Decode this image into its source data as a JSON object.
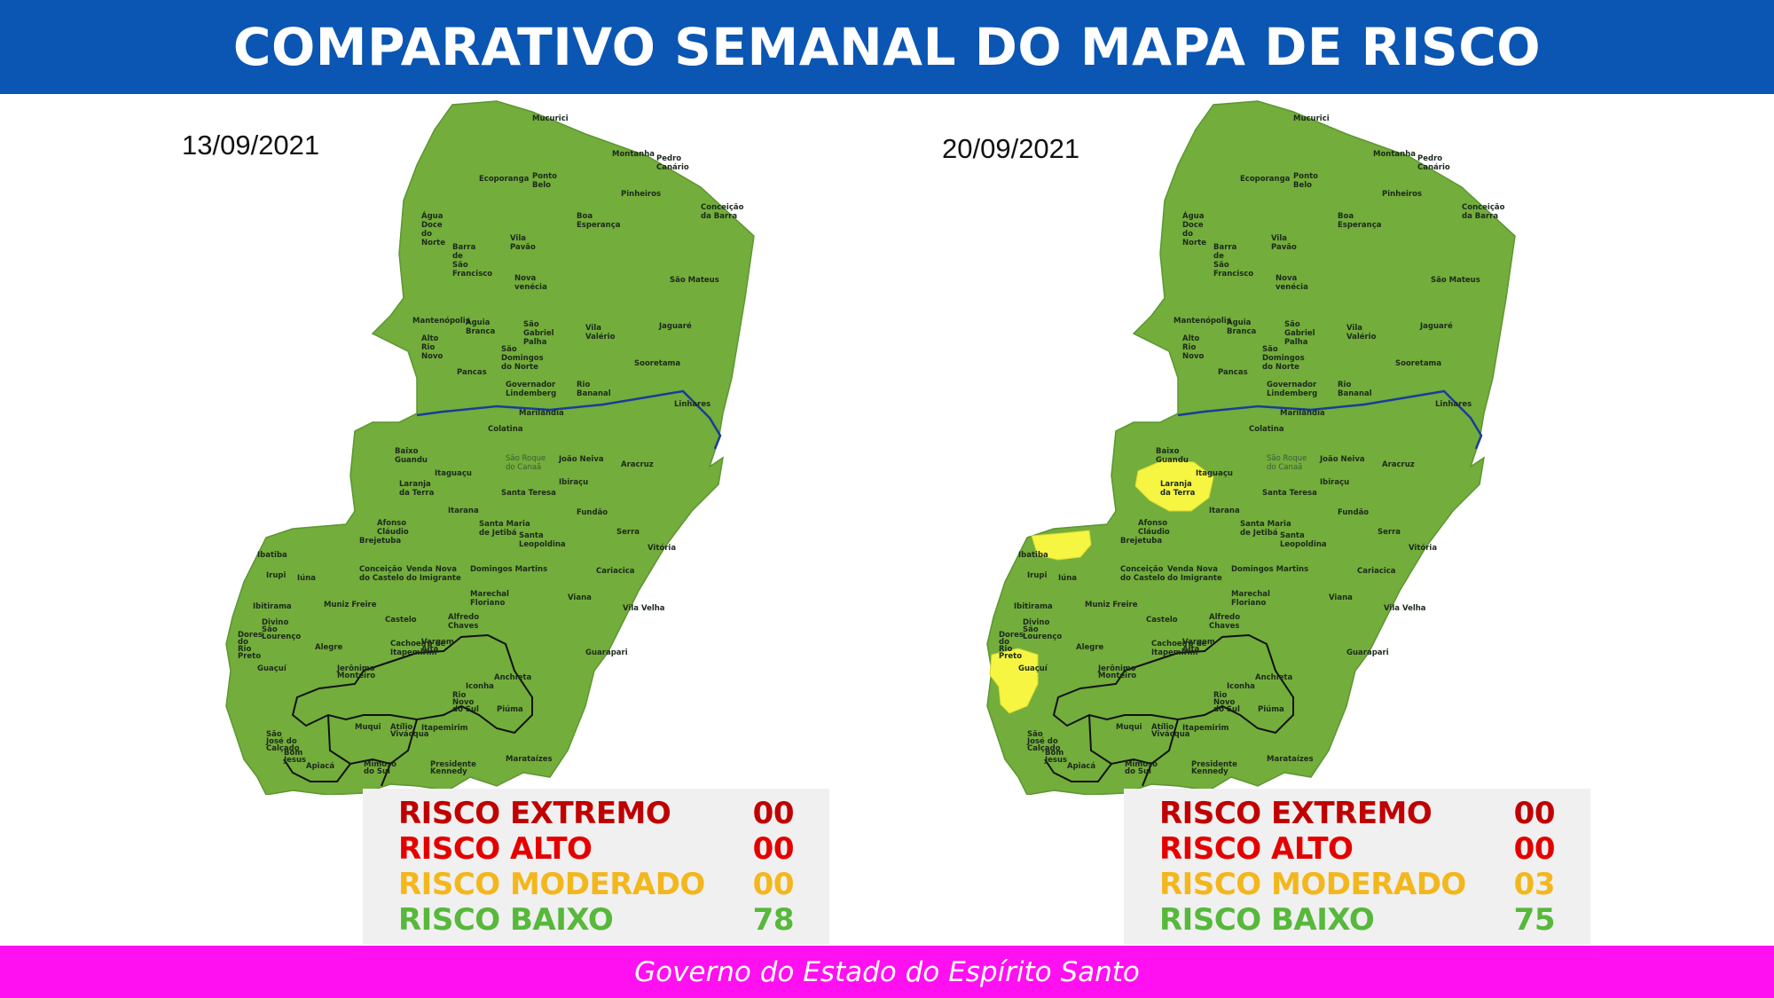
{
  "header": {
    "title": "COMPARATIVO SEMANAL DO MAPA DE RISCO"
  },
  "footer": {
    "text": "Governo do Estado do Espírito Santo"
  },
  "colors": {
    "header_bg": "#0b56b3",
    "footer_bg": "#ff10f0",
    "map_green": "#73ad3b",
    "moderate_yellow": "#f5f542"
  },
  "panels": [
    {
      "date": "13/09/2021",
      "legend": [
        {
          "label": "RISCO EXTREMO",
          "value": "00"
        },
        {
          "label": "RISCO ALTO",
          "value": "00"
        },
        {
          "label": "RISCO MODERADO",
          "value": "00"
        },
        {
          "label": "RISCO BAIXO",
          "value": "78"
        }
      ],
      "moderate_regions": []
    },
    {
      "date": "20/09/2021",
      "legend": [
        {
          "label": "RISCO EXTREMO",
          "value": "00"
        },
        {
          "label": "RISCO ALTO",
          "value": "00"
        },
        {
          "label": "RISCO MODERADO",
          "value": "03"
        },
        {
          "label": "RISCO BAIXO",
          "value": "75"
        }
      ],
      "moderate_regions": [
        "Laranja da Terra",
        "Ibatiba",
        "Guaçuí"
      ]
    }
  ],
  "towns": [
    {
      "name": "Mucurici"
    },
    {
      "name": "Montanha"
    },
    {
      "name": "Pedro"
    },
    {
      "name": "Canário"
    },
    {
      "name": "Ecoporanga"
    },
    {
      "name": "Ponto"
    },
    {
      "name": "Belo"
    },
    {
      "name": "Pinheiros"
    },
    {
      "name": "Conceição"
    },
    {
      "name": "da Barra"
    },
    {
      "name": "Água"
    },
    {
      "name": "Doce"
    },
    {
      "name": "do"
    },
    {
      "name": "Norte"
    },
    {
      "name": "Boa"
    },
    {
      "name": "Esperança"
    },
    {
      "name": "Vila"
    },
    {
      "name": "Pavão"
    },
    {
      "name": "Barra"
    },
    {
      "name": "de"
    },
    {
      "name": "São"
    },
    {
      "name": "Francisco"
    },
    {
      "name": "São Mateus"
    },
    {
      "name": "Nova"
    },
    {
      "name": "venécia"
    },
    {
      "name": "Mantenópolis"
    },
    {
      "name": "Águia"
    },
    {
      "name": "Branca"
    },
    {
      "name": "São"
    },
    {
      "name": "Gabriel"
    },
    {
      "name": "Palha"
    },
    {
      "name": "Vila"
    },
    {
      "name": "Valério"
    },
    {
      "name": "Jaguaré"
    },
    {
      "name": "Alto"
    },
    {
      "name": "Rio"
    },
    {
      "name": "Novo"
    },
    {
      "name": "São"
    },
    {
      "name": "Domingos"
    },
    {
      "name": "do Norte"
    },
    {
      "name": "Sooretama"
    },
    {
      "name": "Pancas"
    },
    {
      "name": "Governador"
    },
    {
      "name": "Lindemberg"
    },
    {
      "name": "Rio"
    },
    {
      "name": "Bananal"
    },
    {
      "name": "Linhares"
    },
    {
      "name": "Marilândia"
    },
    {
      "name": "Colatina"
    },
    {
      "name": "Baixo"
    },
    {
      "name": "Guandu"
    },
    {
      "name": "São Roque"
    },
    {
      "name": "do Canaã"
    },
    {
      "name": "João Neiva"
    },
    {
      "name": "Aracruz"
    },
    {
      "name": "Itaguaçu"
    },
    {
      "name": "Ibiraçu"
    },
    {
      "name": "Laranja"
    },
    {
      "name": "da Terra"
    },
    {
      "name": "Santa Teresa"
    },
    {
      "name": "Itarana"
    },
    {
      "name": "Fundão"
    },
    {
      "name": "Afonso"
    },
    {
      "name": "Cláudio"
    },
    {
      "name": "Santa Maria"
    },
    {
      "name": "de Jetibá"
    },
    {
      "name": "Serra"
    },
    {
      "name": "Brejetuba"
    },
    {
      "name": "Santa"
    },
    {
      "name": "Leopoldina"
    },
    {
      "name": "Ibatiba"
    },
    {
      "name": "Vitória"
    },
    {
      "name": "Iúna"
    },
    {
      "name": "Irupi"
    },
    {
      "name": "Conceição"
    },
    {
      "name": "do Castelo"
    },
    {
      "name": "Venda Nova"
    },
    {
      "name": "do Imigrante"
    },
    {
      "name": "Domingos Martins"
    },
    {
      "name": "Cariacica"
    },
    {
      "name": "Ibitirama"
    },
    {
      "name": "Muniz Freire"
    },
    {
      "name": "Marechal"
    },
    {
      "name": "Floriano"
    },
    {
      "name": "Viana"
    },
    {
      "name": "Vila Velha"
    },
    {
      "name": "Divino"
    },
    {
      "name": "São"
    },
    {
      "name": "Lourenço"
    },
    {
      "name": "Castelo"
    },
    {
      "name": "Alfredo"
    },
    {
      "name": "Chaves"
    },
    {
      "name": "Dores"
    },
    {
      "name": "do"
    },
    {
      "name": "Rio"
    },
    {
      "name": "Preto"
    },
    {
      "name": "Alegre"
    },
    {
      "name": "Cachoeiro de"
    },
    {
      "name": "Itapemirim"
    },
    {
      "name": "Vargem"
    },
    {
      "name": "Alta"
    },
    {
      "name": "Guarapari"
    },
    {
      "name": "Guaçuí"
    },
    {
      "name": "Anchieta"
    },
    {
      "name": "Jerônimo"
    },
    {
      "name": "Monteiro"
    },
    {
      "name": "Iconha"
    },
    {
      "name": "Rio"
    },
    {
      "name": "Novo"
    },
    {
      "name": "do Sul"
    },
    {
      "name": "Piúma"
    },
    {
      "name": "São"
    },
    {
      "name": "José do"
    },
    {
      "name": "Calçado"
    },
    {
      "name": "Muqui"
    },
    {
      "name": "Atílio"
    },
    {
      "name": "Vivácqua"
    },
    {
      "name": "Itapemirim"
    },
    {
      "name": "Bom"
    },
    {
      "name": "Jesus"
    },
    {
      "name": "Apiacá"
    },
    {
      "name": "Mimoso"
    },
    {
      "name": "do Sul"
    },
    {
      "name": "Presidente"
    },
    {
      "name": "Kennedy"
    },
    {
      "name": "Marataízes"
    }
  ]
}
